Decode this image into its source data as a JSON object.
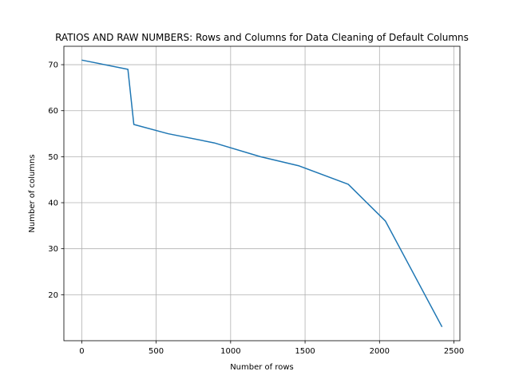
{
  "chart_data": {
    "type": "line",
    "title": "RATIOS AND RAW NUMBERS: Rows and Columns for Data Cleaning of Default Columns",
    "xlabel": "Number of rows",
    "ylabel": "Number of columns",
    "xlim": [
      -120,
      2540
    ],
    "ylim": [
      10,
      74
    ],
    "xticks": [
      0,
      500,
      1000,
      1500,
      2000,
      2500
    ],
    "yticks": [
      20,
      30,
      40,
      50,
      60,
      70
    ],
    "grid": true,
    "series": [
      {
        "color": "#1f77b4",
        "x": [
          0,
          310,
          350,
          580,
          890,
          1200,
          1460,
          1790,
          2040,
          2420
        ],
        "y": [
          71,
          69,
          57,
          55,
          53,
          50,
          48,
          44,
          36,
          13
        ]
      }
    ]
  }
}
